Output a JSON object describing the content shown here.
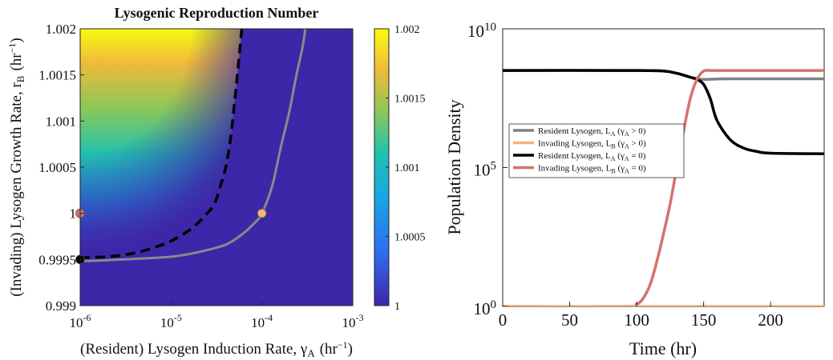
{
  "chart_data": [
    {
      "type": "heatmap",
      "title": "Lysogenic Reproduction Number",
      "xlabel": "(Resident) Lysogen Induction Rate, γ",
      "xlabel_sub": "A",
      "xlabel_unit": "(hr",
      "xlabel_unit_sup": "−1",
      "xlabel_unit_end": ")",
      "ylabel": "(Invading) Lysogen Growth Rate, r",
      "ylabel_sub": "B",
      "ylabel_unit": "(hr",
      "ylabel_unit_sup": "−1",
      "ylabel_unit_end": ")",
      "xscale": "log",
      "xlim": [
        1e-06,
        0.001
      ],
      "ylim": [
        0.999,
        1.002
      ],
      "x_ticks": [
        {
          "value": 1e-06,
          "base": "10",
          "exp": "-6"
        },
        {
          "value": 1e-05,
          "base": "10",
          "exp": "-5"
        },
        {
          "value": 0.0001,
          "base": "10",
          "exp": "-4"
        },
        {
          "value": 0.001,
          "base": "10",
          "exp": "-3"
        }
      ],
      "y_ticks": [
        {
          "value": 0.999,
          "label": "0.999"
        },
        {
          "value": 0.9995,
          "label": "0.9995"
        },
        {
          "value": 1.0,
          "label": "1"
        },
        {
          "value": 1.0005,
          "label": "1.0005"
        },
        {
          "value": 1.001,
          "label": "1.001"
        },
        {
          "value": 1.0015,
          "label": "1.0015"
        },
        {
          "value": 1.002,
          "label": "1.002"
        }
      ],
      "colorbar": {
        "range": [
          1,
          1.002
        ],
        "ticks": [
          {
            "value": 1,
            "label": "1"
          },
          {
            "value": 1.0005,
            "label": "1.0005"
          },
          {
            "value": 1.001,
            "label": "1.001"
          },
          {
            "value": 1.0015,
            "label": "1.0015"
          },
          {
            "value": 1.002,
            "label": "1.002"
          }
        ]
      },
      "threshold_dashed": [
        [
          1e-06,
          0.99952
        ],
        [
          2e-06,
          0.99953
        ],
        [
          4e-06,
          0.99957
        ],
        [
          7e-06,
          0.99964
        ],
        [
          1e-05,
          0.9997
        ],
        [
          1.5e-05,
          0.9998
        ],
        [
          2e-05,
          0.9999
        ],
        [
          2.5e-05,
          1.0
        ],
        [
          3e-05,
          1.0001
        ],
        [
          3.5e-05,
          1.0003
        ],
        [
          4e-05,
          1.0005
        ],
        [
          4.5e-05,
          1.0008
        ],
        [
          5e-05,
          1.0012
        ],
        [
          5.5e-05,
          1.0016
        ],
        [
          6e-05,
          1.002
        ]
      ],
      "threshold_gray": [
        [
          1e-06,
          0.99948
        ],
        [
          3e-06,
          0.9995
        ],
        [
          1e-05,
          0.99953
        ],
        [
          2e-05,
          0.99958
        ],
        [
          4e-05,
          0.99966
        ],
        [
          6e-05,
          0.99977
        ],
        [
          8e-05,
          0.99988
        ],
        [
          0.0001,
          1.0
        ],
        [
          0.00013,
          1.0003
        ],
        [
          0.00016,
          1.0007
        ],
        [
          0.0002,
          1.0011
        ],
        [
          0.00024,
          1.0015
        ],
        [
          0.00028,
          1.0018
        ],
        [
          0.0003,
          1.002
        ]
      ],
      "points": [
        {
          "x": 1e-06,
          "y": 1.0,
          "color": "#d4736b"
        },
        {
          "x": 1e-06,
          "y": 0.9995,
          "color": "#000000"
        },
        {
          "x": 0.0001,
          "y": 1.0,
          "color": "#f0b47a"
        }
      ]
    },
    {
      "type": "line",
      "xlabel": "Time (hr)",
      "ylabel": "Population Density",
      "yscale": "log",
      "xlim": [
        0,
        240
      ],
      "ylim": [
        1,
        10000000000.0
      ],
      "x_ticks": [
        {
          "value": 0,
          "label": "0"
        },
        {
          "value": 50,
          "label": "50"
        },
        {
          "value": 100,
          "label": "100"
        },
        {
          "value": 150,
          "label": "150"
        },
        {
          "value": 200,
          "label": "200"
        }
      ],
      "y_ticks": [
        {
          "value": 1,
          "base": "10",
          "exp": "0"
        },
        {
          "value": 100000.0,
          "base": "10",
          "exp": "5"
        },
        {
          "value": 10000000000.0,
          "base": "10",
          "exp": "10"
        }
      ],
      "legend_position": "center-left",
      "series": [
        {
          "name": "Resident Lysogen, L",
          "name_sub": "A",
          "cond": " (γ",
          "cond_sub": "A",
          "cond_end": " > 0)",
          "color": "#808080",
          "x": [
            0,
            100,
            120,
            130,
            140,
            145,
            150,
            160,
            170,
            240
          ],
          "y": [
            316000000.0,
            316000000.0,
            300000000.0,
            250000000.0,
            180000000.0,
            160000000.0,
            150000000.0,
            155000000.0,
            158000000.0,
            158000000.0
          ]
        },
        {
          "name": "Invading Lysogen, L",
          "name_sub": "B",
          "cond": " (γ",
          "cond_sub": "A",
          "cond_end": " > 0)",
          "color": "#f0b47a",
          "x": [
            0,
            240
          ],
          "y": [
            1,
            1
          ]
        },
        {
          "name": "Resident Lysogen, L",
          "name_sub": "A",
          "cond": " (γ",
          "cond_sub": "A",
          "cond_end": " = 0)",
          "color": "#000000",
          "x": [
            0,
            100,
            120,
            130,
            140,
            145,
            150,
            155,
            160,
            170,
            180,
            190,
            200,
            240
          ],
          "y": [
            316000000.0,
            316000000.0,
            300000000.0,
            250000000.0,
            180000000.0,
            150000000.0,
            100000000.0,
            30000000.0,
            5000000.0,
            1000000.0,
            500000.0,
            380000.0,
            330000.0,
            316000.0
          ]
        },
        {
          "name": "Invading Lysogen, L",
          "name_sub": "B",
          "cond": " (γ",
          "cond_sub": "A",
          "cond_end": " = 0)",
          "color": "#d4736b",
          "x": [
            0,
            90,
            100,
            105,
            110,
            115,
            120,
            125,
            130,
            135,
            140,
            145,
            150,
            155,
            160,
            240
          ],
          "y": [
            1,
            1,
            1.2,
            2,
            6,
            40,
            400,
            5000.0,
            100000.0,
            2000000.0,
            30000000.0,
            150000000.0,
            300000000.0,
            316000000.0,
            316000000.0,
            316000000.0
          ]
        }
      ]
    }
  ]
}
